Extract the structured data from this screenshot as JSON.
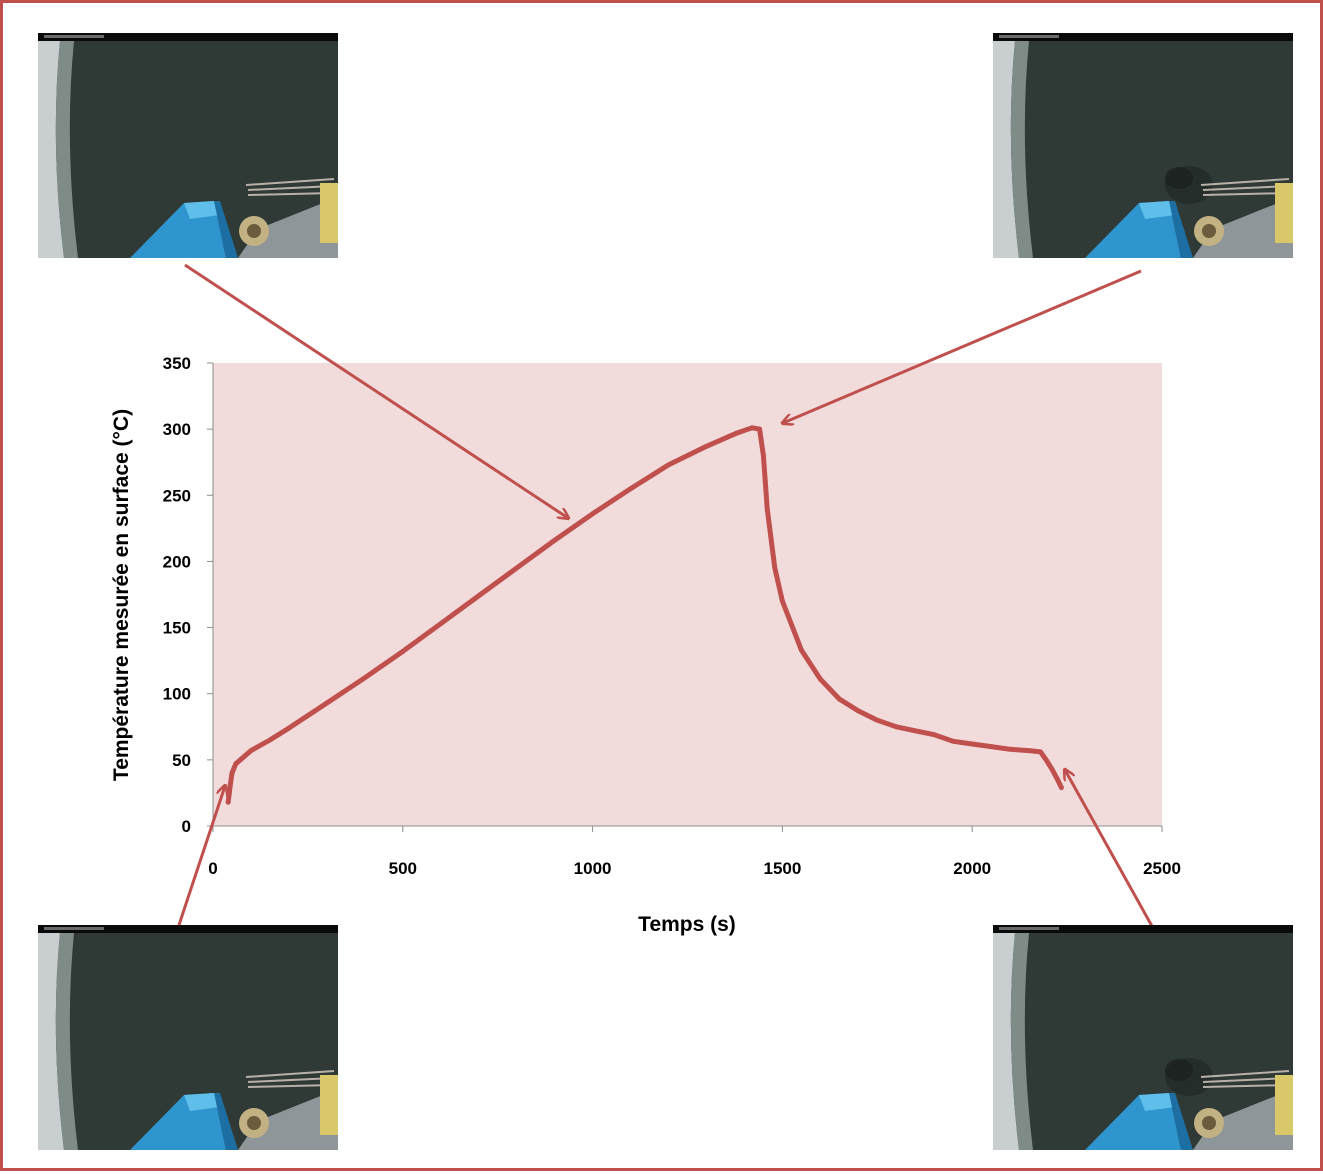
{
  "chart_data": {
    "type": "line",
    "xlabel": "Temps (s)",
    "ylabel": "Température mesurée en surface (°C)",
    "xlim": [
      0,
      2500
    ],
    "ylim": [
      0,
      350
    ],
    "x_ticks": [
      0,
      500,
      1000,
      1500,
      2000,
      2500
    ],
    "y_ticks": [
      0,
      50,
      100,
      150,
      200,
      250,
      300,
      350
    ],
    "grid": false,
    "legend": "none",
    "plot_background": "#f2dcdb",
    "series_color": "#c0504d",
    "series": [
      {
        "x": [
          40,
          45,
          50,
          60,
          80,
          100,
          150,
          200,
          300,
          400,
          500,
          600,
          700,
          800,
          900,
          1000,
          1100,
          1200,
          1300,
          1380,
          1420,
          1440,
          1450,
          1460,
          1480,
          1500,
          1550,
          1600,
          1650,
          1700,
          1750,
          1800,
          1850,
          1900,
          1950,
          2000,
          2050,
          2100,
          2150,
          2180,
          2195,
          2210,
          2225,
          2235
        ],
        "y": [
          18,
          30,
          40,
          47,
          52,
          57,
          65,
          74,
          93,
          112,
          132,
          153,
          174,
          195,
          216,
          236,
          255,
          273,
          287,
          297,
          301,
          300,
          280,
          240,
          195,
          170,
          133,
          111,
          96,
          87,
          80,
          75,
          72,
          69,
          64,
          62,
          60,
          58,
          57,
          56,
          50,
          43,
          35,
          29
        ]
      }
    ]
  },
  "photos": [
    {
      "name": "initial-state",
      "smoke": false
    },
    {
      "name": "peak-temperature",
      "smoke": true
    },
    {
      "name": "start-of-test",
      "smoke": false
    },
    {
      "name": "end-of-test",
      "smoke": true
    }
  ]
}
